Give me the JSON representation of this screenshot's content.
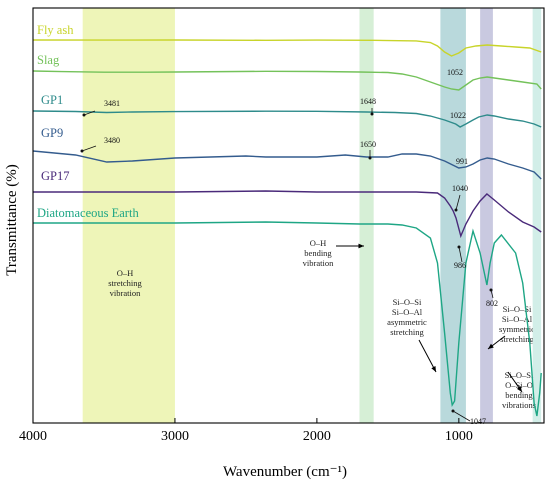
{
  "chart_data": {
    "type": "line",
    "title": "",
    "xlabel": "Wavenumber (cm⁻¹)",
    "ylabel": "Transmittance (%)",
    "xlim": [
      4000,
      400
    ],
    "x_reversed": true,
    "xticks": [
      4000,
      3000,
      2000,
      1000
    ],
    "y_ticks_shown": false,
    "grid": false,
    "legend": "none",
    "series": [
      {
        "name": "Fly ash",
        "color": "#c8d42a",
        "points": [
          [
            4000,
            0.0
          ],
          [
            3500,
            0.1
          ],
          [
            3000,
            0.0
          ],
          [
            2360,
            0.3
          ],
          [
            2000,
            0.1
          ],
          [
            1600,
            0.3
          ],
          [
            1300,
            0.9
          ],
          [
            1200,
            2.5
          ],
          [
            1150,
            6
          ],
          [
            1100,
            12
          ],
          [
            1052,
            16
          ],
          [
            1000,
            13
          ],
          [
            950,
            8
          ],
          [
            880,
            6
          ],
          [
            800,
            5
          ],
          [
            700,
            6
          ],
          [
            600,
            7
          ],
          [
            500,
            8
          ],
          [
            420,
            12
          ]
        ]
      },
      {
        "name": "Slag",
        "color": "#74c25a",
        "points": [
          [
            4000,
            0.0
          ],
          [
            3800,
            0.6
          ],
          [
            3500,
            1.2
          ],
          [
            3200,
            1.2
          ],
          [
            3000,
            1.0
          ],
          [
            2360,
            0.3
          ],
          [
            2000,
            0.5
          ],
          [
            1700,
            1.0
          ],
          [
            1500,
            1.5
          ],
          [
            1400,
            3
          ],
          [
            1300,
            6
          ],
          [
            1200,
            11
          ],
          [
            1100,
            16
          ],
          [
            1052,
            18
          ],
          [
            1000,
            19
          ],
          [
            950,
            14
          ],
          [
            900,
            9
          ],
          [
            850,
            7
          ],
          [
            800,
            6
          ],
          [
            750,
            7
          ],
          [
            650,
            9
          ],
          [
            550,
            11
          ],
          [
            450,
            13
          ],
          [
            420,
            18
          ]
        ]
      },
      {
        "name": "GP1",
        "color": "#2e8b8b",
        "points": [
          [
            4000,
            0.0
          ],
          [
            3700,
            0.5
          ],
          [
            3481,
            1.5
          ],
          [
            3300,
            1.0
          ],
          [
            3000,
            0.6
          ],
          [
            2360,
            0.2
          ],
          [
            2000,
            0.3
          ],
          [
            1648,
            1.0
          ],
          [
            1450,
            1.5
          ],
          [
            1300,
            2.5
          ],
          [
            1200,
            5
          ],
          [
            1100,
            9
          ],
          [
            1022,
            13
          ],
          [
            991,
            16
          ],
          [
            950,
            13
          ],
          [
            900,
            9
          ],
          [
            860,
            6
          ],
          [
            800,
            4
          ],
          [
            750,
            5
          ],
          [
            650,
            8
          ],
          [
            550,
            10
          ],
          [
            470,
            13
          ],
          [
            420,
            16
          ]
        ]
      },
      {
        "name": "GP9",
        "color": "#345c8e",
        "points": [
          [
            4000,
            0.0
          ],
          [
            3700,
            4
          ],
          [
            3480,
            11
          ],
          [
            3300,
            10
          ],
          [
            3000,
            7
          ],
          [
            2500,
            5
          ],
          [
            2360,
            6
          ],
          [
            2000,
            6
          ],
          [
            1800,
            4
          ],
          [
            1650,
            6
          ],
          [
            1500,
            6
          ],
          [
            1400,
            3
          ],
          [
            1300,
            3
          ],
          [
            1200,
            5
          ],
          [
            1100,
            10
          ],
          [
            1000,
            17
          ],
          [
            950,
            16
          ],
          [
            900,
            13
          ],
          [
            850,
            9
          ],
          [
            800,
            7
          ],
          [
            750,
            8
          ],
          [
            650,
            13
          ],
          [
            550,
            17
          ],
          [
            470,
            21
          ],
          [
            420,
            28
          ]
        ]
      },
      {
        "name": "GP17",
        "color": "#4a2a7a",
        "points": [
          [
            4000,
            0.0
          ],
          [
            3000,
            0.0
          ],
          [
            2360,
            -1
          ],
          [
            2000,
            0.0
          ],
          [
            1600,
            0.0
          ],
          [
            1300,
            0.0
          ],
          [
            1150,
            1.0
          ],
          [
            1100,
            6
          ],
          [
            1060,
            14
          ],
          [
            1040,
            19
          ],
          [
            1020,
            26
          ],
          [
            986,
            44
          ],
          [
            950,
            32
          ],
          [
            900,
            19
          ],
          [
            850,
            9
          ],
          [
            802,
            2
          ],
          [
            750,
            8
          ],
          [
            650,
            20
          ],
          [
            550,
            30
          ],
          [
            470,
            35
          ],
          [
            420,
            40
          ]
        ]
      },
      {
        "name": "Diatomaceous Earth",
        "color": "#1ea685",
        "points": [
          [
            4000,
            0.0
          ],
          [
            3500,
            0.0
          ],
          [
            3000,
            0.0
          ],
          [
            2360,
            -1
          ],
          [
            2000,
            0.0
          ],
          [
            1700,
            1.0
          ],
          [
            1500,
            1.0
          ],
          [
            1400,
            2
          ],
          [
            1300,
            5
          ],
          [
            1200,
            15
          ],
          [
            1150,
            40
          ],
          [
            1100,
            110
          ],
          [
            1060,
            170
          ],
          [
            1047,
            182
          ],
          [
            1030,
            178
          ],
          [
            1000,
            120
          ],
          [
            950,
            40
          ],
          [
            900,
            8
          ],
          [
            850,
            30
          ],
          [
            802,
            62
          ],
          [
            780,
            40
          ],
          [
            750,
            20
          ],
          [
            700,
            12
          ],
          [
            600,
            30
          ],
          [
            550,
            60
          ],
          [
            500,
            120
          ],
          [
            470,
            180
          ],
          [
            450,
            193
          ],
          [
            430,
            170
          ],
          [
            420,
            150
          ]
        ]
      }
    ],
    "annotations": [
      {
        "text": "3481",
        "series": "GP1"
      },
      {
        "text": "1648",
        "series": "GP1"
      },
      {
        "text": "1052",
        "series": "Fly ash"
      },
      {
        "text": "1022",
        "series": "GP1"
      },
      {
        "text": "991",
        "series": "GP1"
      },
      {
        "text": "3480",
        "series": "GP9"
      },
      {
        "text": "1650",
        "series": "GP9"
      },
      {
        "text": "1040",
        "series": "GP17"
      },
      {
        "text": "986",
        "series": "GP17"
      },
      {
        "text": "802",
        "series": "GP17"
      },
      {
        "text": "1047",
        "series": "Diatomaceous Earth"
      }
    ],
    "bands": [
      {
        "from": 3650,
        "to": 3000,
        "color": "#eef5b8",
        "label": "O–H\nstretching\nvibration"
      },
      {
        "from": 1700,
        "to": 1600,
        "color": "#d6efd6",
        "label": "O–H\nbending\nvibration"
      },
      {
        "from": 1130,
        "to": 950,
        "color": "#b9d9dc",
        "label": "Si–O–Si\nSi–O–Al\nasymmetric\nstretching"
      },
      {
        "from": 850,
        "to": 760,
        "color": "#c9c9e0",
        "label": "Si–O–Si\nSi–O–Al\nsymmetric\nstretching"
      },
      {
        "from": 480,
        "to": 420,
        "color": "#d2eee8",
        "label": "Si–O–Si\nO–Si–O\nbending\nvibrations"
      }
    ]
  }
}
